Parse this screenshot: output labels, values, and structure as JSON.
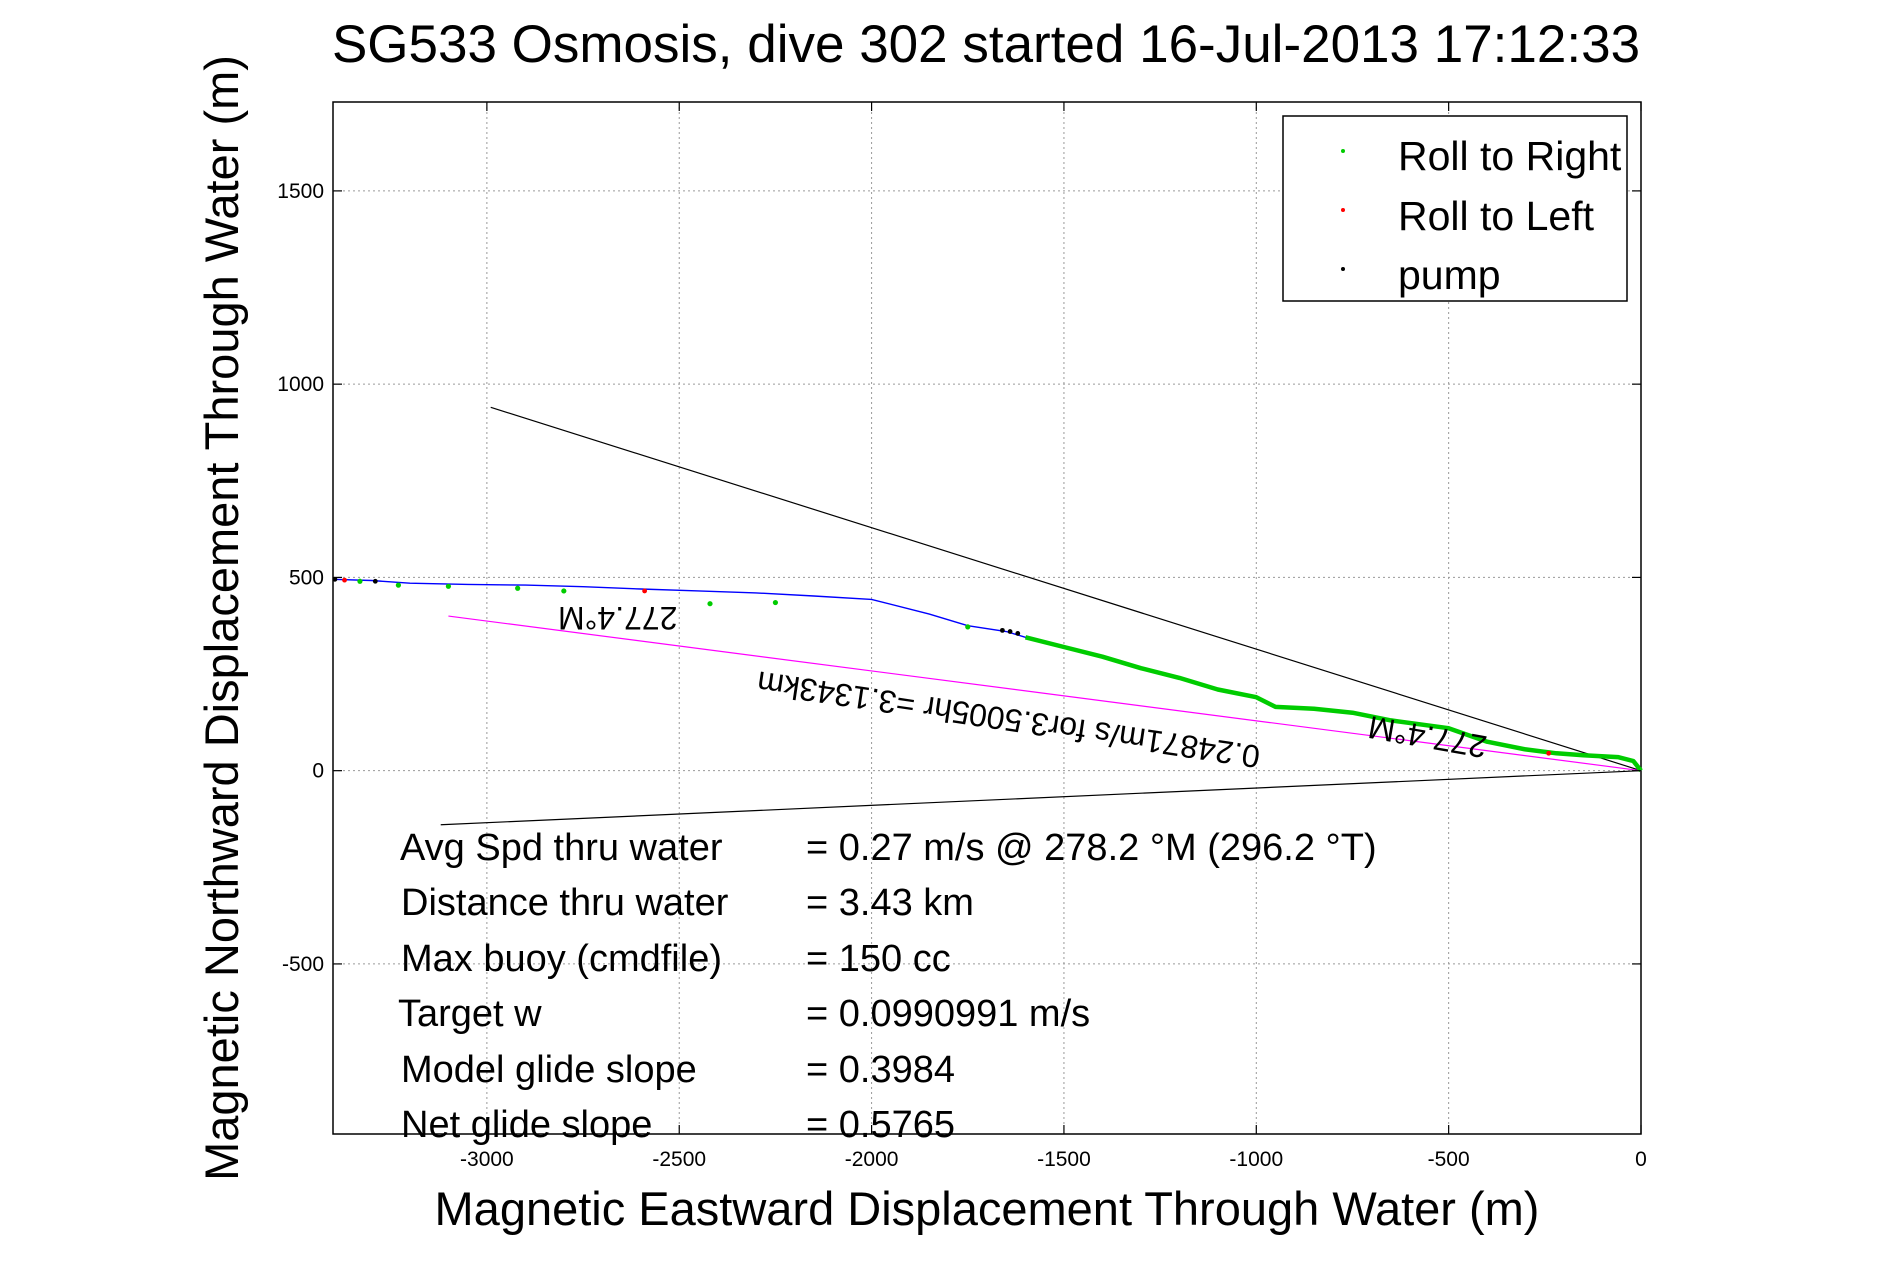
{
  "chart_data": {
    "type": "line",
    "title": "SG533 Osmosis, dive 302 started 16-Jul-2013 17:12:33",
    "xlabel": "Magnetic Eastward Displacement Through Water (m)",
    "ylabel": "Magnetic Northward Displacement Through Water (m)",
    "xlim": [
      -3400,
      0
    ],
    "ylim": [
      -940,
      1730
    ],
    "x_ticks": [
      -3000,
      -2500,
      -2000,
      -1500,
      -1000,
      -500,
      0
    ],
    "y_ticks": [
      -500,
      0,
      500,
      1000,
      1500
    ],
    "x_tick_labels": [
      "-3000",
      "-2500",
      "-2000",
      "-1500",
      "-1000",
      "-500",
      "0"
    ],
    "y_tick_labels": [
      "-500",
      "0",
      "500",
      "1000",
      "1500"
    ],
    "grid": true,
    "legend_position": "top-right",
    "legend": [
      {
        "label": "Roll to Right",
        "color": "#00cc00"
      },
      {
        "label": "Roll to Left",
        "color": "#ff0000"
      },
      {
        "label": "pump",
        "color": "#000000"
      }
    ],
    "track": {
      "color": "#0000ff",
      "x": [
        -3400,
        -3300,
        -3200,
        -3050,
        -2900,
        -2750,
        -2600,
        -2450,
        -2300,
        -2150,
        -2000,
        -1850,
        -1750,
        -1650,
        -1600,
        -1500,
        -1400,
        -1300,
        -1200,
        -1100,
        -1000,
        -950,
        -850,
        -750,
        -650,
        -500,
        -400,
        -300,
        -220,
        -150,
        -60,
        -20,
        0
      ],
      "y": [
        495,
        492,
        485,
        482,
        480,
        476,
        470,
        465,
        460,
        452,
        443,
        405,
        375,
        360,
        345,
        320,
        295,
        265,
        240,
        210,
        190,
        165,
        160,
        150,
        130,
        110,
        75,
        55,
        45,
        40,
        35,
        25,
        0
      ]
    },
    "roll_right_segment": {
      "color": "#00cc00",
      "x": [
        -1600,
        -1500,
        -1400,
        -1300,
        -1200,
        -1100,
        -1000,
        -950,
        -850,
        -750,
        -650,
        -500,
        -400,
        -300,
        -220,
        -150,
        -60,
        -20,
        0
      ],
      "y": [
        345,
        320,
        295,
        265,
        240,
        210,
        190,
        165,
        160,
        150,
        130,
        110,
        75,
        55,
        45,
        40,
        35,
        25,
        0
      ]
    },
    "roll_right_points": {
      "x": [
        -3330,
        -3230,
        -3100,
        -2920,
        -2800,
        -2420,
        -2250,
        -1750
      ],
      "y": [
        490,
        480,
        477,
        472,
        465,
        432,
        435,
        372
      ]
    },
    "roll_left_points": {
      "x": [
        -3370,
        -2590,
        -240
      ],
      "y": [
        493,
        465,
        45
      ]
    },
    "pump_points": {
      "x": [
        -3395,
        -3290,
        -1660,
        -1640,
        -1620
      ],
      "y": [
        495,
        490,
        363,
        360,
        355
      ]
    },
    "reference_lines": [
      {
        "name": "heading-upper",
        "color": "#000000",
        "x": [
          -2990,
          0
        ],
        "y": [
          940,
          0
        ]
      },
      {
        "name": "heading-lower",
        "color": "#000000",
        "x": [
          -3120,
          0
        ],
        "y": [
          -140,
          0
        ]
      },
      {
        "name": "current",
        "color": "#ff00ff",
        "x": [
          -3100,
          0
        ],
        "y": [
          400,
          0
        ]
      }
    ],
    "annotations": [
      {
        "text": "277.4°M",
        "x": -2660,
        "y": 423,
        "rotate": 180
      },
      {
        "text": "0.24871m/s for3.5005hr =3.1343km",
        "x": -1640,
        "y": 160,
        "rotate": 188.5
      },
      {
        "text": "277.4°M",
        "x": -550,
        "y": 115,
        "rotate": 190
      }
    ],
    "stats": [
      {
        "label": "Avg Spd thru water",
        "value": "=  0.27 m/s @ 278.2 °M (296.2 °T)"
      },
      {
        "label": "Distance thru water",
        "value": "=  3.43 km"
      },
      {
        "label": "Max buoy (cmdfile)",
        "value": "= 150 cc"
      },
      {
        "label": "Target w",
        "value": "= 0.0990991 m/s"
      },
      {
        "label": "Model glide slope",
        "value": "= 0.3984"
      },
      {
        "label": "Net glide slope",
        "value": "= 0.5765"
      }
    ]
  }
}
